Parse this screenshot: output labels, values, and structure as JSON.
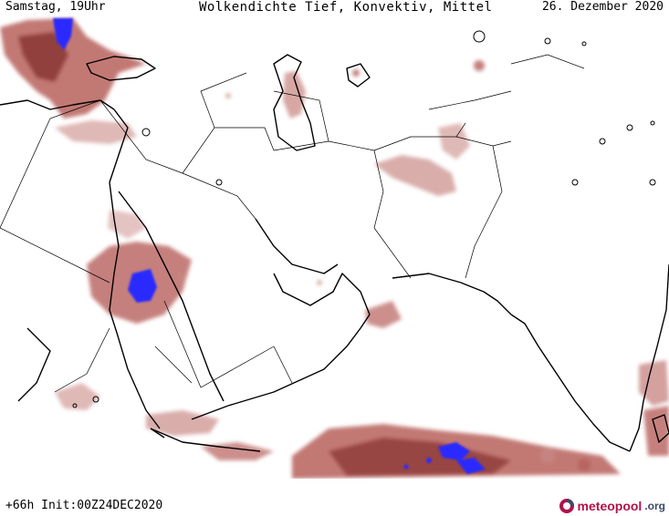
{
  "header": {
    "left": "Samstag, 19Uhr",
    "center": "Wolkendichte  Tief, Konvektiv, Mittel",
    "right": "26. Dezember 2020"
  },
  "footer": {
    "run": "+66h Init:00Z24DEC2020",
    "logo_main": "meteopool",
    "logo_tld": ".org"
  },
  "colors": {
    "cloud_light": "#c98a86",
    "cloud_mid": "#a9504c",
    "cloud_dark": "#8e3a38",
    "convective_core": "#2b2bff",
    "coastline": "#000000",
    "border": "#000000",
    "background": "#ffffff"
  },
  "icons": {
    "logo": "meteopool-logo-icon"
  }
}
